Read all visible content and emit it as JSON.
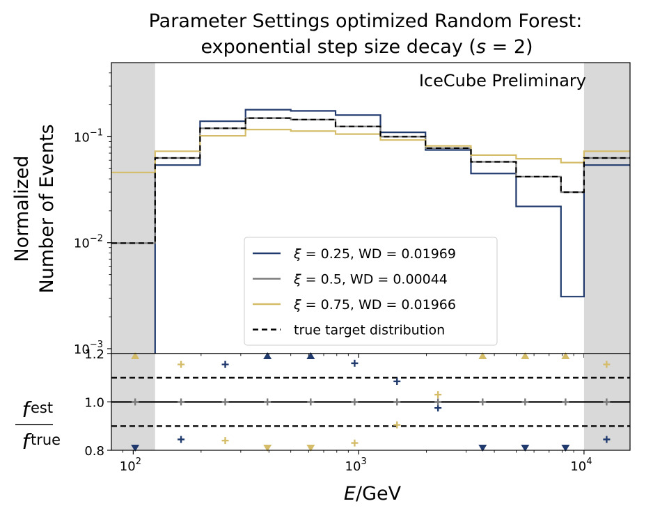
{
  "chart_data": [
    {
      "type": "line",
      "step": "post",
      "title_line1": "Parameter Settings optimized Random Forest:",
      "title_line2": "exponential step size decay (s = 2)",
      "title_line2_prefix": "exponential step size decay (",
      "title_line2_var": "s",
      "title_line2_suffix": " = 2)",
      "ylabel_line1": "Normalized",
      "ylabel_line2": "Number of Events",
      "yscale": "log",
      "ylim": [
        0.0009,
        0.5
      ],
      "yticks": [
        {
          "value": 0.1,
          "base": "10",
          "exp": "−1"
        },
        {
          "value": 0.01,
          "base": "10",
          "exp": "−2"
        },
        {
          "value": 0.001,
          "base": "10",
          "exp": "−3"
        }
      ],
      "xscale": "log",
      "xlim": [
        80,
        16000
      ],
      "annotation": "IceCube Preliminary",
      "annotation_color": "#ee0000",
      "shaded_regions": [
        [
          80,
          125
        ],
        [
          10000,
          16000
        ]
      ],
      "shade_color": "#d9d9d9",
      "bin_edges": [
        80,
        125,
        198,
        315,
        500,
        790,
        1250,
        1980,
        3150,
        5000,
        7900,
        10000,
        16000
      ],
      "series": [
        {
          "name": "ξ = 0.25, WD = 0.01969",
          "greek": "ξ",
          "rest": " = 0.25, WD = 0.01969",
          "color": "#203a6e",
          "dash": "solid",
          "values": [
            0.0001,
            0.054,
            0.14,
            0.18,
            0.175,
            0.16,
            0.11,
            0.075,
            0.045,
            0.022,
            0.0031,
            0.054
          ]
        },
        {
          "name": "ξ = 0.5, WD = 0.00044",
          "greek": "ξ",
          "rest": " = 0.5, WD = 0.00044",
          "color": "#7a7a7a",
          "dash": "solid",
          "values": [
            0.0099,
            0.063,
            0.12,
            0.15,
            0.145,
            0.125,
            0.1,
            0.078,
            0.058,
            0.042,
            0.03,
            0.063
          ]
        },
        {
          "name": "ξ = 0.75, WD = 0.01966",
          "greek": "ξ",
          "rest": " = 0.75, WD = 0.01966",
          "color": "#d4bc68",
          "dash": "solid",
          "values": [
            0.046,
            0.073,
            0.102,
            0.117,
            0.113,
            0.106,
            0.093,
            0.082,
            0.067,
            0.062,
            0.057,
            0.073
          ]
        },
        {
          "name": "true target distribution",
          "greek": "",
          "rest": "true target distribution",
          "color": "#000000",
          "dash": "dashed",
          "values": [
            0.0099,
            0.063,
            0.12,
            0.15,
            0.145,
            0.125,
            0.1,
            0.078,
            0.058,
            0.042,
            0.03,
            0.063
          ]
        }
      ]
    },
    {
      "type": "scatter",
      "ylabel_num": "f",
      "ylabel_num_sub": "est",
      "ylabel_den": "f",
      "ylabel_den_sub": "true",
      "ylim": [
        0.8,
        1.2
      ],
      "yticks": [
        "1.2",
        "1.0",
        "0.8"
      ],
      "xlabel_var": "E",
      "xlabel_unit": "/GeV",
      "xticks": [
        {
          "value": 100,
          "base": "10",
          "exp": "2"
        },
        {
          "value": 1000,
          "base": "10",
          "exp": "3"
        },
        {
          "value": 10000,
          "base": "10",
          "exp": "4"
        }
      ],
      "hlines": [
        {
          "y": 1.0,
          "style": "solid"
        },
        {
          "y": 1.1,
          "style": "dashed"
        },
        {
          "y": 0.9,
          "style": "dashed"
        }
      ],
      "series": [
        {
          "name": "ξ = 0.25",
          "color": "#203a6e",
          "points": [
            {
              "x": 102,
              "y": 0.8,
              "marker": "down"
            },
            {
              "x": 163,
              "y": 0.845,
              "marker": "plus"
            },
            {
              "x": 256,
              "y": 1.155,
              "marker": "plus"
            },
            {
              "x": 394,
              "y": 1.2,
              "marker": "up"
            },
            {
              "x": 613,
              "y": 1.2,
              "marker": "up"
            },
            {
              "x": 960,
              "y": 1.16,
              "marker": "plus"
            },
            {
              "x": 1480,
              "y": 1.085,
              "marker": "plus"
            },
            {
              "x": 2250,
              "y": 0.975,
              "marker": "plus"
            },
            {
              "x": 3550,
              "y": 0.8,
              "marker": "down"
            },
            {
              "x": 5480,
              "y": 0.8,
              "marker": "down"
            },
            {
              "x": 8280,
              "y": 0.8,
              "marker": "down"
            },
            {
              "x": 12600,
              "y": 0.845,
              "marker": "plus"
            }
          ]
        },
        {
          "name": "ξ = 0.5",
          "color": "#7a7a7a",
          "points": [
            {
              "x": 102,
              "y": 1.0,
              "marker": "plus"
            },
            {
              "x": 163,
              "y": 1.0,
              "marker": "plus"
            },
            {
              "x": 256,
              "y": 1.0,
              "marker": "plus"
            },
            {
              "x": 394,
              "y": 1.0,
              "marker": "plus"
            },
            {
              "x": 613,
              "y": 1.0,
              "marker": "plus"
            },
            {
              "x": 960,
              "y": 1.0,
              "marker": "plus"
            },
            {
              "x": 1480,
              "y": 1.0,
              "marker": "plus"
            },
            {
              "x": 2250,
              "y": 1.0,
              "marker": "plus"
            },
            {
              "x": 3550,
              "y": 1.0,
              "marker": "plus"
            },
            {
              "x": 5480,
              "y": 1.0,
              "marker": "plus"
            },
            {
              "x": 8280,
              "y": 1.0,
              "marker": "plus"
            },
            {
              "x": 12600,
              "y": 1.0,
              "marker": "plus"
            }
          ]
        },
        {
          "name": "ξ = 0.75",
          "color": "#d4bc68",
          "points": [
            {
              "x": 102,
              "y": 1.2,
              "marker": "up"
            },
            {
              "x": 163,
              "y": 1.155,
              "marker": "plus"
            },
            {
              "x": 256,
              "y": 0.84,
              "marker": "plus"
            },
            {
              "x": 394,
              "y": 0.8,
              "marker": "down"
            },
            {
              "x": 613,
              "y": 0.8,
              "marker": "down"
            },
            {
              "x": 960,
              "y": 0.83,
              "marker": "plus"
            },
            {
              "x": 1480,
              "y": 0.905,
              "marker": "plus"
            },
            {
              "x": 2250,
              "y": 1.03,
              "marker": "plus"
            },
            {
              "x": 3550,
              "y": 1.2,
              "marker": "up"
            },
            {
              "x": 5480,
              "y": 1.2,
              "marker": "up"
            },
            {
              "x": 8280,
              "y": 1.2,
              "marker": "up"
            },
            {
              "x": 12600,
              "y": 1.155,
              "marker": "plus"
            }
          ]
        }
      ]
    }
  ]
}
